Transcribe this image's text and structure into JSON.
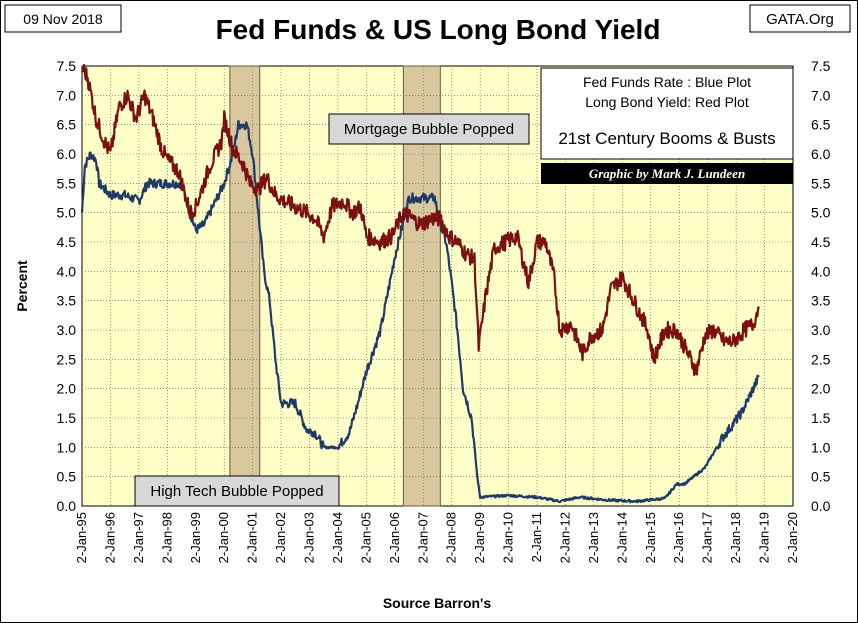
{
  "header": {
    "date": "09 Nov 2018",
    "title": "Fed Funds & US Long Bond Yield",
    "source_tag": "GATA.Org"
  },
  "legend": {
    "line1": "Fed Funds Rate : Blue Plot",
    "line2": "Long Bond Yield: Red Plot",
    "line3": "21st Century Booms & Busts",
    "credit": "Graphic by Mark J. Lundeen"
  },
  "annotations": {
    "mortgage": "Mortgage Bubble Popped",
    "hightech": "High Tech Bubble Popped"
  },
  "colors": {
    "plot_bg": "#ffffc8",
    "fed_funds": "#1f3a66",
    "long_bond": "#7a1010",
    "shade": "#d9c7a0",
    "credit_bg": "#000000"
  },
  "chart_data": {
    "type": "line",
    "title": "Fed Funds & US Long Bond Yield",
    "xlabel": "Source Barron's",
    "ylabel": "Percent",
    "ylim": [
      0,
      7.5
    ],
    "xlim": [
      1995,
      2020
    ],
    "yticks": [
      "0.0",
      "0.5",
      "1.0",
      "1.5",
      "2.0",
      "2.5",
      "3.0",
      "3.5",
      "4.0",
      "4.5",
      "5.0",
      "5.5",
      "6.0",
      "6.5",
      "7.0",
      "7.5"
    ],
    "xticks": [
      "2-Jan-95",
      "2-Jan-96",
      "2-Jan-97",
      "2-Jan-98",
      "2-Jan-99",
      "2-Jan-00",
      "2-Jan-01",
      "2-Jan-02",
      "2-Jan-03",
      "2-Jan-04",
      "2-Jan-05",
      "2-Jan-06",
      "2-Jan-07",
      "2-Jan-08",
      "2-Jan-09",
      "2-Jan-10",
      "2-Jan-11",
      "2-Jan-12",
      "2-Jan-13",
      "2-Jan-14",
      "2-Jan-15",
      "2-Jan-16",
      "2-Jan-17",
      "2-Jan-18",
      "2-Jan-19",
      "2-Jan-20"
    ],
    "shaded_periods": [
      [
        2000.2,
        2001.25
      ],
      [
        2006.3,
        2007.6
      ]
    ],
    "series": [
      {
        "name": "Fed Funds Rate",
        "color": "#1f3a66",
        "x": [
          1995.0,
          1995.1,
          1995.3,
          1995.5,
          1995.6,
          1996.0,
          1996.5,
          1997.0,
          1997.3,
          1997.5,
          1998.0,
          1998.5,
          1998.8,
          1999.0,
          1999.3,
          1999.5,
          1999.8,
          2000.0,
          2000.3,
          2000.5,
          2000.8,
          2001.0,
          2001.2,
          2001.4,
          2001.6,
          2001.8,
          2002.0,
          2002.5,
          2002.9,
          2003.2,
          2003.5,
          2003.8,
          2004.0,
          2004.4,
          2004.7,
          2005.0,
          2005.5,
          2006.0,
          2006.5,
          2007.0,
          2007.4,
          2007.6,
          2007.8,
          2008.0,
          2008.2,
          2008.4,
          2008.7,
          2008.9,
          2009.0,
          2010.0,
          2011.0,
          2011.8,
          2012.5,
          2013.5,
          2014.5,
          2015.5,
          2015.9,
          2016.2,
          2016.9,
          2017.2,
          2017.5,
          2017.9,
          2018.2,
          2018.5,
          2018.8
        ],
        "values": [
          5.0,
          5.8,
          6.0,
          5.9,
          5.5,
          5.3,
          5.3,
          5.2,
          5.5,
          5.5,
          5.5,
          5.5,
          5.0,
          4.7,
          4.8,
          5.0,
          5.3,
          5.5,
          6.0,
          6.5,
          6.5,
          6.0,
          5.0,
          4.0,
          3.5,
          2.5,
          1.75,
          1.75,
          1.3,
          1.25,
          1.0,
          1.0,
          1.0,
          1.25,
          1.75,
          2.3,
          3.0,
          4.25,
          5.25,
          5.25,
          5.25,
          4.8,
          4.5,
          3.8,
          3.0,
          2.0,
          1.5,
          0.5,
          0.15,
          0.18,
          0.15,
          0.08,
          0.15,
          0.1,
          0.08,
          0.13,
          0.37,
          0.38,
          0.65,
          0.9,
          1.15,
          1.4,
          1.6,
          1.9,
          2.2
        ]
      },
      {
        "name": "Long Bond Yield",
        "color": "#7a1010",
        "x": [
          1995.0,
          1995.2,
          1995.5,
          1995.8,
          1996.0,
          1996.3,
          1996.6,
          1996.9,
          1997.2,
          1997.5,
          1997.8,
          1998.0,
          1998.4,
          1998.8,
          1999.0,
          1999.5,
          1999.9,
          2000.0,
          2000.3,
          2000.7,
          2000.9,
          2001.2,
          2001.5,
          2001.8,
          2002.1,
          2002.5,
          2002.9,
          2003.2,
          2003.5,
          2003.8,
          2004.2,
          2004.5,
          2004.8,
          2005.0,
          2005.5,
          2005.9,
          2006.3,
          2006.6,
          2006.9,
          2007.3,
          2007.6,
          2007.9,
          2008.2,
          2008.5,
          2008.8,
          2008.95,
          2009.2,
          2009.5,
          2009.9,
          2010.3,
          2010.7,
          2011.0,
          2011.3,
          2011.6,
          2011.8,
          2012.2,
          2012.6,
          2012.9,
          2013.3,
          2013.6,
          2014.0,
          2014.5,
          2014.9,
          2015.1,
          2015.5,
          2015.9,
          2016.2,
          2016.6,
          2016.9,
          2017.2,
          2017.6,
          2017.9,
          2018.3,
          2018.6,
          2018.8
        ],
        "values": [
          7.5,
          7.3,
          6.6,
          6.2,
          6.0,
          6.8,
          7.0,
          6.6,
          7.0,
          6.6,
          6.1,
          5.9,
          5.7,
          5.0,
          5.1,
          5.8,
          6.2,
          6.6,
          6.1,
          5.8,
          5.5,
          5.4,
          5.6,
          5.3,
          5.2,
          5.1,
          5.0,
          4.9,
          4.6,
          5.1,
          5.2,
          5.0,
          5.1,
          4.6,
          4.5,
          4.6,
          5.0,
          4.9,
          4.8,
          4.9,
          4.9,
          4.6,
          4.5,
          4.3,
          4.2,
          2.7,
          3.6,
          4.4,
          4.5,
          4.6,
          3.8,
          4.5,
          4.5,
          3.9,
          3.0,
          3.1,
          2.6,
          2.9,
          3.0,
          3.7,
          3.9,
          3.4,
          3.0,
          2.5,
          3.0,
          3.0,
          2.7,
          2.3,
          2.9,
          3.0,
          2.8,
          2.8,
          3.0,
          3.1,
          3.4
        ]
      }
    ]
  },
  "axes": {
    "xlabel": "Source Barron's",
    "ylabel": "Percent"
  }
}
